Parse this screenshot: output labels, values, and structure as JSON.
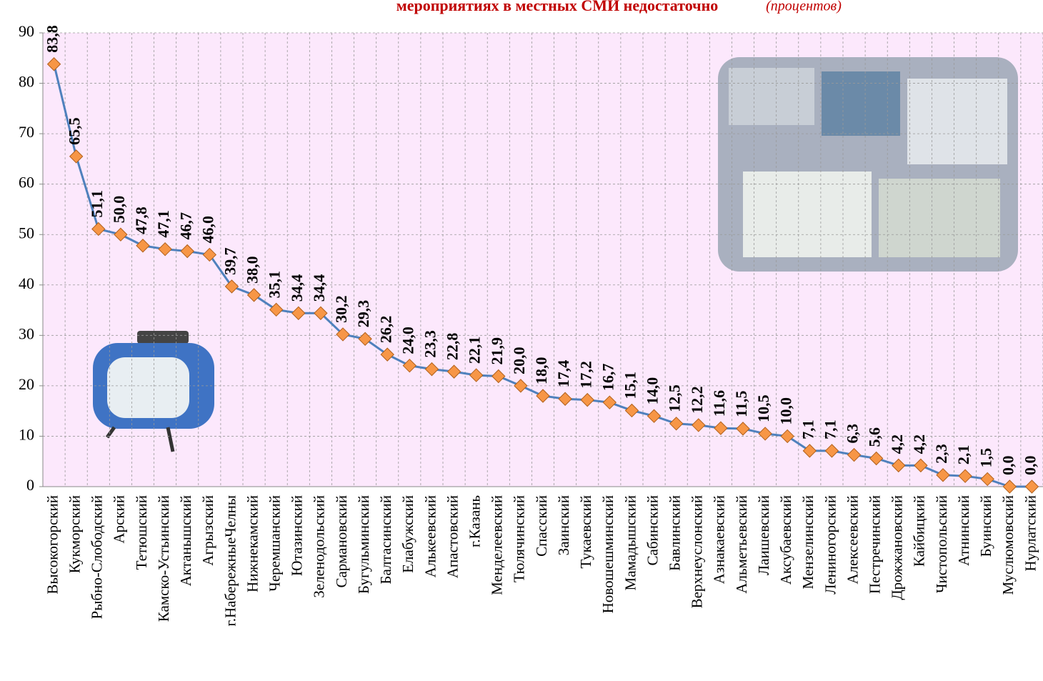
{
  "chart_data": {
    "type": "line",
    "title": "мероприятиях в местных СМИ недостаточно",
    "subtitle": "(процентов)",
    "categories": [
      "Высокогорский",
      "Кукморский",
      "Рыбно-Слободский",
      "Арский",
      "Тетюшский",
      "Камско-Устьинский",
      "Актанышский",
      "Агрызский",
      "г.НабережныеЧелны",
      "Нижнекамский",
      "Черемшанский",
      "Ютазинский",
      "Зеленодольский",
      "Сармановский",
      "Бугульминский",
      "Балтасинский",
      "Елабужский",
      "Алькеевский",
      "Апастовский",
      "г.Казань",
      "Менделеевский",
      "Тюлячинский",
      "Спасский",
      "Заинский",
      "Тукаевский",
      "Новошешминский",
      "Мамадышский",
      "Сабинский",
      "Бавлинский",
      "Верхнеуслонский",
      "Азнакаевский",
      "Альметьевский",
      "Лаишевский",
      "Аксубаевский",
      "Мензелинский",
      "Лениногорский",
      "Алексеевский",
      "Пестречинский",
      "Дрожжановский",
      "Кайбицкий",
      "Чистопольский",
      "Атнинский",
      "Буинский",
      "Муслюмовский",
      "Нурлатский"
    ],
    "values": [
      83.8,
      65.5,
      51.1,
      50.0,
      47.8,
      47.1,
      46.7,
      46.0,
      39.7,
      38.0,
      35.1,
      34.4,
      34.4,
      30.2,
      29.3,
      26.2,
      24.0,
      23.3,
      22.8,
      22.1,
      21.9,
      20.0,
      18.0,
      17.4,
      17.2,
      16.7,
      15.1,
      14.0,
      12.5,
      12.2,
      11.6,
      11.5,
      10.5,
      10.0,
      7.1,
      7.1,
      6.3,
      5.6,
      4.2,
      4.2,
      2.3,
      2.1,
      1.5,
      0.0,
      0.0
    ],
    "value_labels": [
      "83,8",
      "65,5",
      "51,1",
      "50,0",
      "47,8",
      "47,1",
      "46,7",
      "46,0",
      "39,7",
      "38,0",
      "35,1",
      "34,4",
      "34,4",
      "30,2",
      "29,3",
      "26,2",
      "24,0",
      "23,3",
      "22,8",
      "22,1",
      "21,9",
      "20,0",
      "18,0",
      "17,4",
      "17,2",
      "16,7",
      "15,1",
      "14,0",
      "12,5",
      "12,2",
      "11,6",
      "11,5",
      "10,5",
      "10,0",
      "7,1",
      "7,1",
      "6,3",
      "5,6",
      "4,2",
      "4,2",
      "2,3",
      "2,1",
      "1,5",
      "0,0",
      "0,0"
    ],
    "line_color": "#4f81bd",
    "marker_color": "#f79646",
    "ylim": [
      0,
      90
    ],
    "yticks": [
      0,
      10,
      20,
      30,
      40,
      50,
      60,
      70,
      80,
      90
    ],
    "grid": true
  }
}
